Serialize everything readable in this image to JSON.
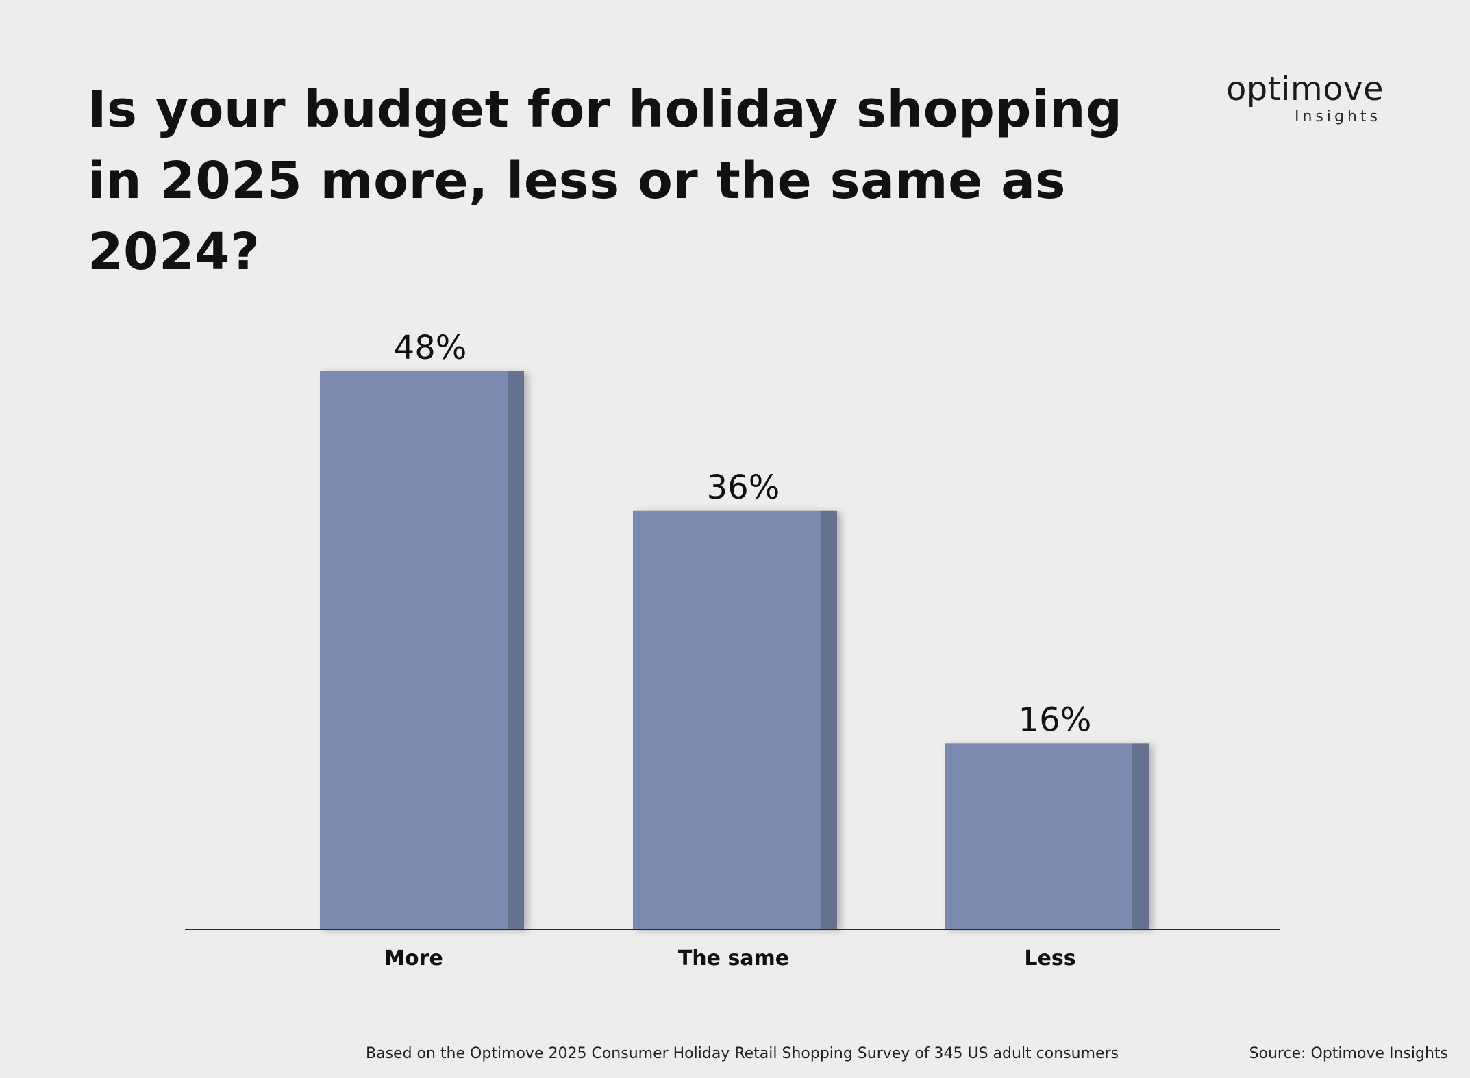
{
  "logo": {
    "name": "optimove",
    "subtitle": "Insights"
  },
  "footer": {
    "note": "Based on the Optimove 2025 Consumer Holiday Retail Shopping Survey of 345 US adult consumers",
    "source": "Source: Optimove Insights"
  },
  "colors": {
    "bar": "#7b8aaf",
    "bar_side": "#65718f",
    "axis": "#2a2a2a"
  },
  "chart_data": {
    "type": "bar",
    "title": "Is your budget for holiday shopping in 2025 more, less or the same as 2024?",
    "categories": [
      "More",
      "The same",
      "Less"
    ],
    "values": [
      48,
      36,
      16
    ],
    "value_labels": [
      "48%",
      "36%",
      "16%"
    ],
    "xlabel": "",
    "ylabel": "",
    "ylim": [
      0,
      48
    ],
    "grid": false,
    "legend": "none"
  }
}
